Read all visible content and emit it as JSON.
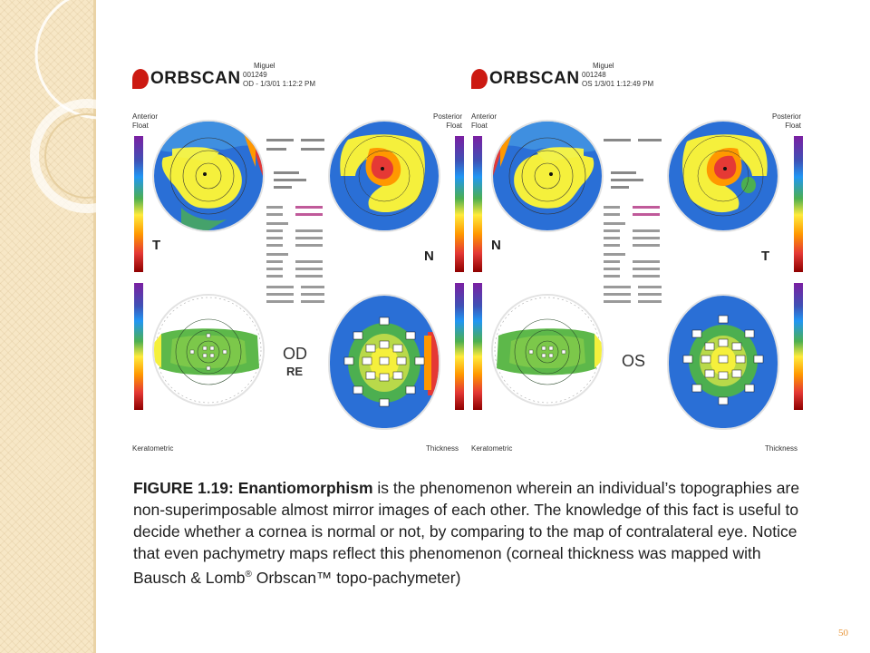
{
  "figure": {
    "left": {
      "logo": "ORBSCAN",
      "name": "Miguel",
      "patient_id": "001249",
      "eye_line": "OD - 1/3/01 1:12:2 PM",
      "label_top_left": "Anterior\nFloat",
      "label_top_right": "Posterior\nFloat",
      "label_bottom_left": "Keratometric",
      "label_bottom_right": "Thickness",
      "dir_top_left": "T",
      "dir_top_right": "N",
      "eye_code": "OD",
      "eye_sub": "RE"
    },
    "right": {
      "logo": "ORBSCAN",
      "name": "Miguel",
      "patient_id": "001248",
      "eye_line": "OS 1/3/01 1:12:49 PM",
      "label_top_left": "Anterior\nFloat",
      "label_top_right": "Posterior\nFloat",
      "label_bottom_left": "Keratometric",
      "label_bottom_right": "Thickness",
      "dir_top_left": "N",
      "dir_top_right": "T",
      "eye_code": "OS"
    }
  },
  "caption": {
    "figure_label": "FIGURE 1.19:",
    "term": "Enantiomorphism",
    "body": " is the phenomenon wherein an individual’s topographies are non-superimposable almost mirror images of each other. The knowledge of this fact is useful to decide whether a cornea is normal or not, by comparing to the map of contralateral eye. Notice that even pachymetry maps reflect this phenomenon (corneal thickness was mapped with Bausch & Lomb",
    "reg_mark": "®",
    "brand": " Orbscan™ topo-pachymeter)"
  },
  "page_number": "50",
  "colors": {
    "strip": "#f7e7c6",
    "page_number": "#e8963a",
    "logo_red": "#cc1a12"
  }
}
